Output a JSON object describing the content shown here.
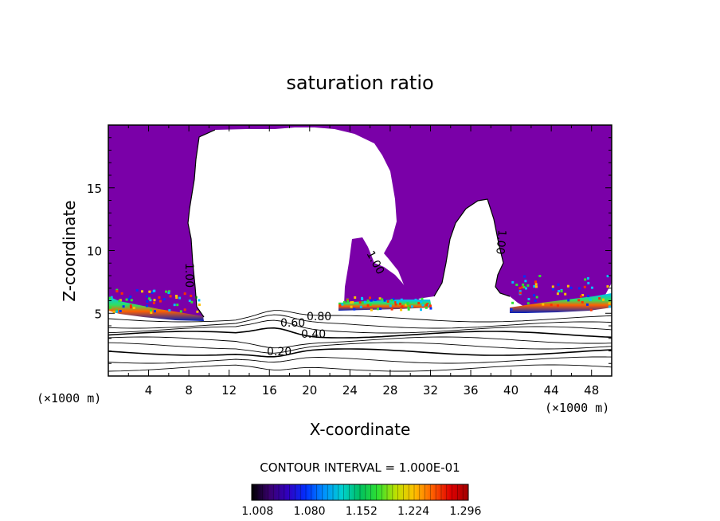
{
  "chart_data": {
    "type": "heatmap",
    "title": "saturation ratio",
    "xlabel": "X-coordinate",
    "ylabel": "Z-coordinate",
    "x_unit_label": "(×1000 m)",
    "y_unit_label": "(×1000 m)",
    "xlim": [
      0,
      50
    ],
    "ylim": [
      0,
      20
    ],
    "x_ticks": [
      "4",
      "8",
      "12",
      "16",
      "20",
      "24",
      "28",
      "32",
      "36",
      "40",
      "44",
      "48"
    ],
    "y_ticks": [
      "5",
      "10",
      "15"
    ],
    "contour_interval_text": "CONTOUR INTERVAL = 1.000E-01",
    "contour_labels": [
      "1.00",
      "1.00",
      "1.00",
      "0.80",
      "0.60",
      "0.40",
      "0.20"
    ],
    "colorbar": {
      "ticks": [
        "1.008",
        "1.080",
        "1.152",
        "1.224",
        "1.296"
      ],
      "range": [
        1.0,
        1.3
      ],
      "colors": [
        "#000000",
        "#3a0070",
        "#3000c0",
        "#0030ff",
        "#0090ff",
        "#00d0d0",
        "#00c060",
        "#30e030",
        "#c0e000",
        "#ffc000",
        "#ff6000",
        "#e00000",
        "#a00000"
      ]
    },
    "fill_color_subsaturated": "#7a00a8"
  }
}
